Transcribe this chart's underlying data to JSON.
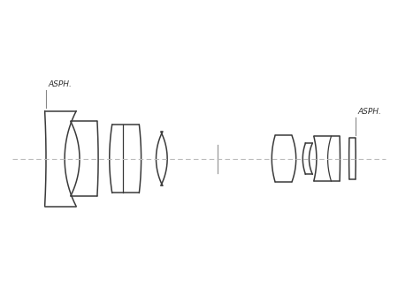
{
  "background_color": "#ffffff",
  "line_color": "#3a3a3a",
  "axis_color": "#aaaaaa",
  "text_color": "#333333",
  "lw": 1.1,
  "asph_fontsize": 6.5
}
